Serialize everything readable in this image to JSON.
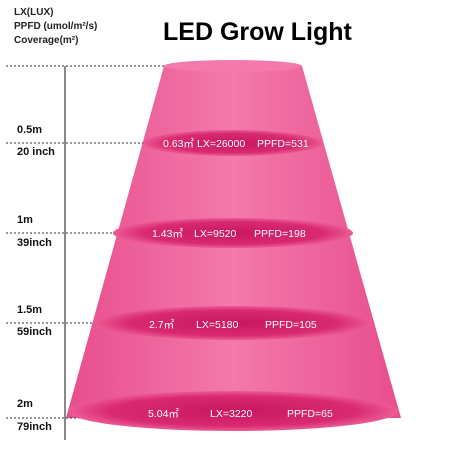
{
  "title": "LED Grow Light",
  "legend": [
    "LX(LUX)",
    "PPFD (umol/m²/s)",
    "Coverage(m²)"
  ],
  "levels": [
    {
      "meters": "0.5m",
      "inches": "20 inch",
      "coverage": "0.63㎡",
      "lux": "LX=26000",
      "ppfd": "PPFD=531"
    },
    {
      "meters": "1m",
      "inches": "39inch",
      "coverage": "1.43㎡",
      "lux": "LX=9520",
      "ppfd": "PPFD=198"
    },
    {
      "meters": "1.5m",
      "inches": "59inch",
      "coverage": "2.7㎡",
      "lux": "LX=5180",
      "ppfd": "PPFD=105"
    },
    {
      "meters": "2m",
      "inches": "79inch",
      "coverage": "5.04㎡",
      "lux": "LX=3220",
      "ppfd": "PPFD=65"
    }
  ],
  "colors": {
    "beam": "#f06aa0",
    "beam_edge": "#e23c7f",
    "ellipse": "#d6246a"
  }
}
